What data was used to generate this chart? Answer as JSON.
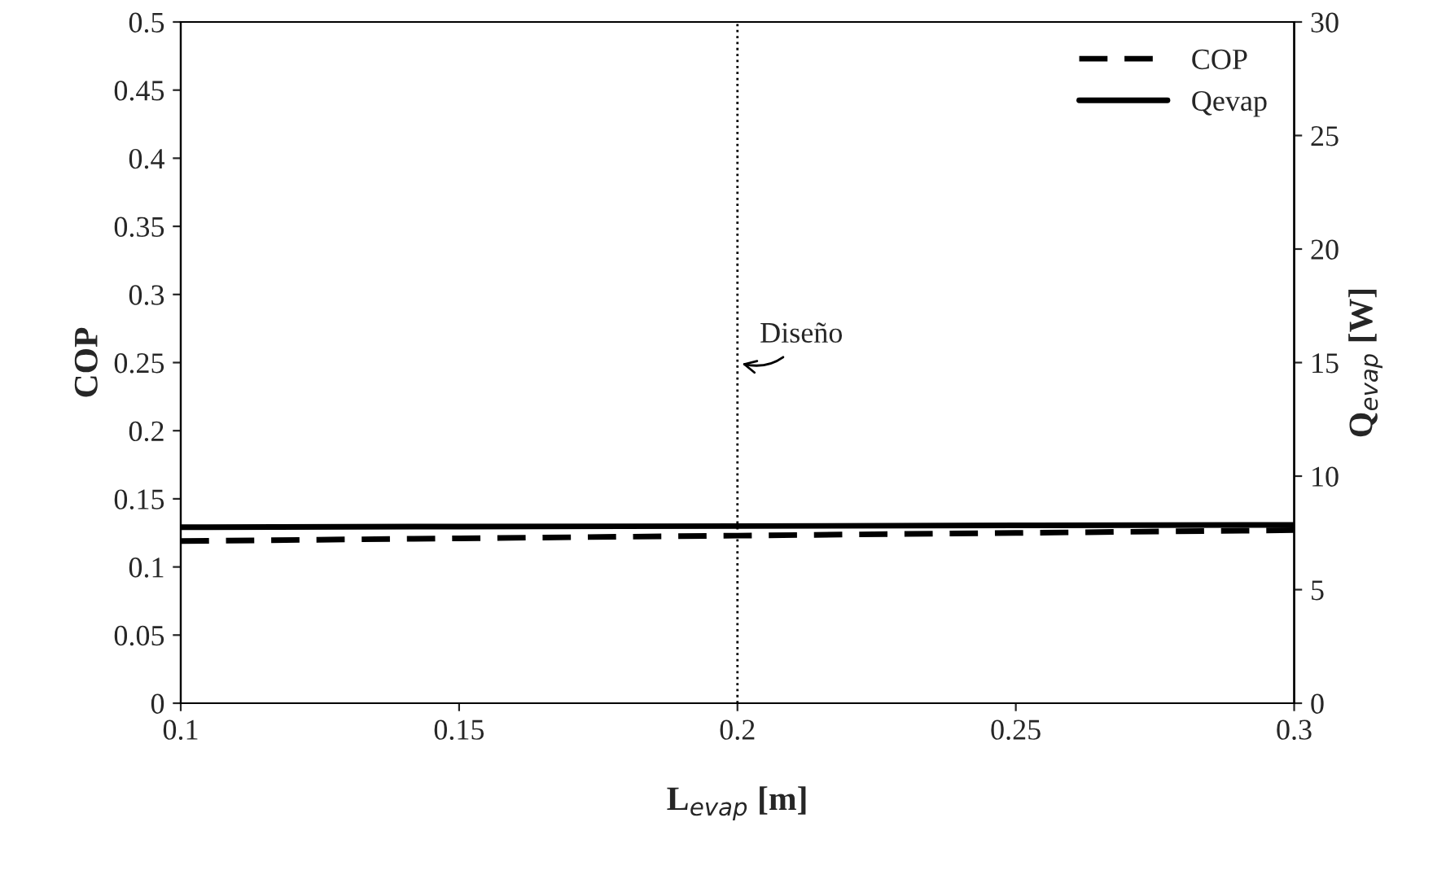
{
  "chart_data": {
    "type": "line",
    "xlabel": "L$_{evap}$ [m]",
    "ylabel": "COP",
    "y2label": "Q$_{evap}$ [W]",
    "x": [
      0.1,
      0.15,
      0.2,
      0.25,
      0.3
    ],
    "series": [
      {
        "name": "COP",
        "color": "#000000",
        "line_style": "dashed",
        "values": [
          0.119,
          0.121,
          0.123,
          0.125,
          0.127
        ]
      },
      {
        "name": "Qevap",
        "color": "#000000",
        "line_style": "solid",
        "axis": "y2",
        "values": [
          7.75,
          7.78,
          7.8,
          7.83,
          7.85
        ]
      }
    ],
    "xlim": [
      0.1,
      0.3
    ],
    "xticks": [
      0.1,
      0.15,
      0.2,
      0.25,
      0.3
    ],
    "ylim": [
      0,
      0.5
    ],
    "yticks": [
      0,
      0.05,
      0.1,
      0.15,
      0.2,
      0.25,
      0.3,
      0.35,
      0.4,
      0.45,
      0.5
    ],
    "y2lim": [
      0,
      30
    ],
    "y2ticks": [
      0,
      5,
      10,
      15,
      20,
      25,
      30
    ],
    "ref_lines": [
      {
        "axis": "x",
        "value": 0.2,
        "label": "Diseño",
        "line_style": "dotted",
        "color": "#000000"
      }
    ],
    "grid": false,
    "legend": "top right",
    "marker": "none"
  }
}
